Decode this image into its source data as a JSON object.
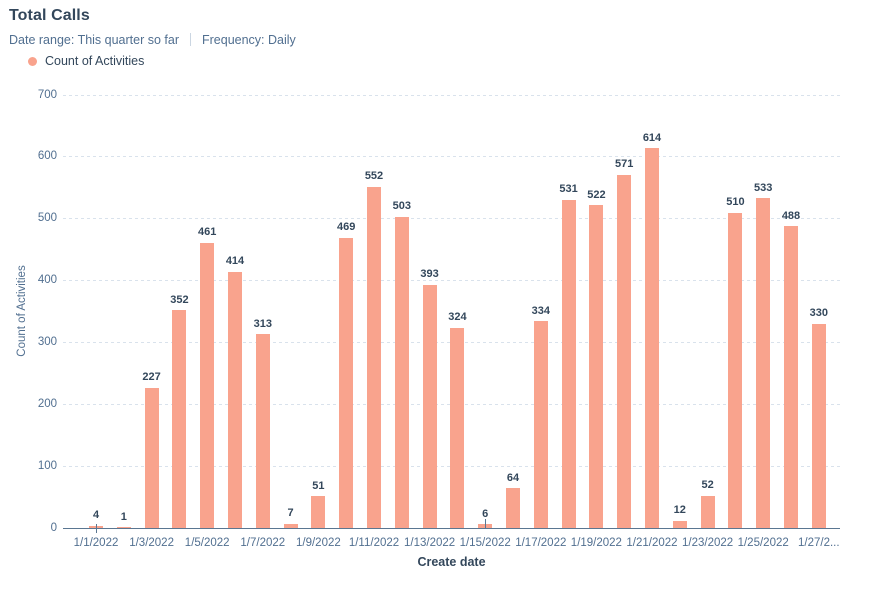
{
  "header": {
    "title": "Total Calls",
    "date_range": "Date range: This quarter so far",
    "frequency": "Frequency: Daily"
  },
  "legend": {
    "items": [
      {
        "label": "Count of Activities",
        "color": "#f9a38d"
      }
    ]
  },
  "chart_data": {
    "type": "bar",
    "title": "Total Calls",
    "xlabel": "Create date",
    "ylabel": "Count of Activities",
    "ylim": [
      0,
      700
    ],
    "ytick_interval": 100,
    "grid": "horizontal-dashed",
    "legend_position": "top-left",
    "bar_color": "#f9a38d",
    "axis_color": "#5a7691",
    "gridline_color": "#d9e2ec",
    "label_color": "#33475b",
    "tick_label_color": "#516f90",
    "series_name": "Count of Activities",
    "categories": [
      "1/1/2022",
      "1/2/2022",
      "1/3/2022",
      "1/4/2022",
      "1/5/2022",
      "1/6/2022",
      "1/7/2022",
      "1/8/2022",
      "1/9/2022",
      "1/10/2022",
      "1/11/2022",
      "1/12/2022",
      "1/13/2022",
      "1/14/2022",
      "1/15/2022",
      "1/16/2022",
      "1/17/2022",
      "1/18/2022",
      "1/19/2022",
      "1/20/2022",
      "1/21/2022",
      "1/22/2022",
      "1/23/2022",
      "1/24/2022",
      "1/25/2022",
      "1/26/2022",
      "1/27/2022"
    ],
    "values": [
      4,
      1,
      227,
      352,
      461,
      414,
      313,
      7,
      51,
      469,
      552,
      503,
      393,
      324,
      6,
      64,
      334,
      531,
      522,
      571,
      614,
      12,
      52,
      510,
      533,
      488,
      330
    ],
    "x_axis_labels_shown": [
      "1/1/2022",
      "1/3/2022",
      "1/5/2022",
      "1/7/2022",
      "1/9/2022",
      "1/11/2022",
      "1/13/2022",
      "1/15/2022",
      "1/17/2022",
      "1/19/2022",
      "1/21/2022",
      "1/23/2022",
      "1/25/2022",
      "1/27/2..."
    ]
  }
}
